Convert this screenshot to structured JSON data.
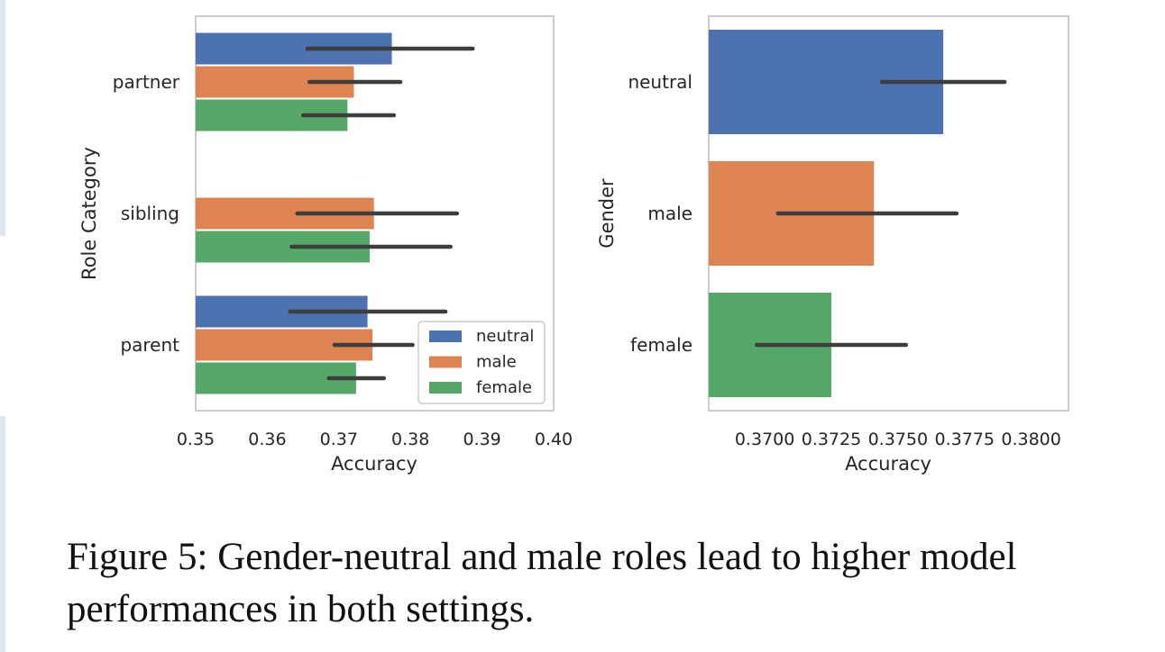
{
  "chart_data": [
    {
      "type": "bar",
      "orientation": "horizontal",
      "title": "",
      "xlabel": "Accuracy",
      "ylabel": "Role Category",
      "xlim": [
        0.35,
        0.4
      ],
      "xticks": [
        "0.35",
        "0.36",
        "0.37",
        "0.38",
        "0.39",
        "0.40"
      ],
      "xtick_values": [
        0.35,
        0.36,
        0.37,
        0.38,
        0.39,
        0.4
      ],
      "categories": [
        "partner",
        "sibling",
        "parent"
      ],
      "series": [
        {
          "name": "neutral",
          "color": "#4c72b0",
          "values": [
            0.3774,
            null,
            0.374
          ],
          "err_low": [
            0.3656,
            null,
            0.3632
          ],
          "err_high": [
            0.3887,
            null,
            0.3849
          ]
        },
        {
          "name": "male",
          "color": "#dd8452",
          "values": [
            0.3721,
            0.3749,
            0.3747
          ],
          "err_low": [
            0.3659,
            0.3642,
            0.3694
          ],
          "err_high": [
            0.3786,
            0.3865,
            0.3803
          ]
        },
        {
          "name": "female",
          "color": "#55a868",
          "values": [
            0.3712,
            0.3743,
            0.3724
          ],
          "err_low": [
            0.365,
            0.3634,
            0.3686
          ],
          "err_high": [
            0.3777,
            0.3856,
            0.3763
          ]
        }
      ],
      "legend": {
        "placement": "lower-right",
        "entries": [
          "neutral",
          "male",
          "female"
        ]
      },
      "grid": false
    },
    {
      "type": "bar",
      "orientation": "horizontal",
      "title": "",
      "xlabel": "Accuracy",
      "ylabel": "Gender",
      "xlim": [
        0.3679,
        0.3814
      ],
      "xticks": [
        "0.3700",
        "0.3725",
        "0.3750",
        "0.3775",
        "0.3800"
      ],
      "xtick_values": [
        0.37,
        0.3725,
        0.375,
        0.3775,
        0.38
      ],
      "categories": [
        "neutral",
        "male",
        "female"
      ],
      "colors": [
        "#4c72b0",
        "#dd8452",
        "#55a868"
      ],
      "values": [
        0.3767,
        0.3741,
        0.3725
      ],
      "err_low": [
        0.3744,
        0.3705,
        0.3697
      ],
      "err_high": [
        0.379,
        0.3772,
        0.3753
      ],
      "grid": false
    }
  ],
  "caption": "Figure 5: Gender-neutral and male roles lead to higher model performances in both settings."
}
